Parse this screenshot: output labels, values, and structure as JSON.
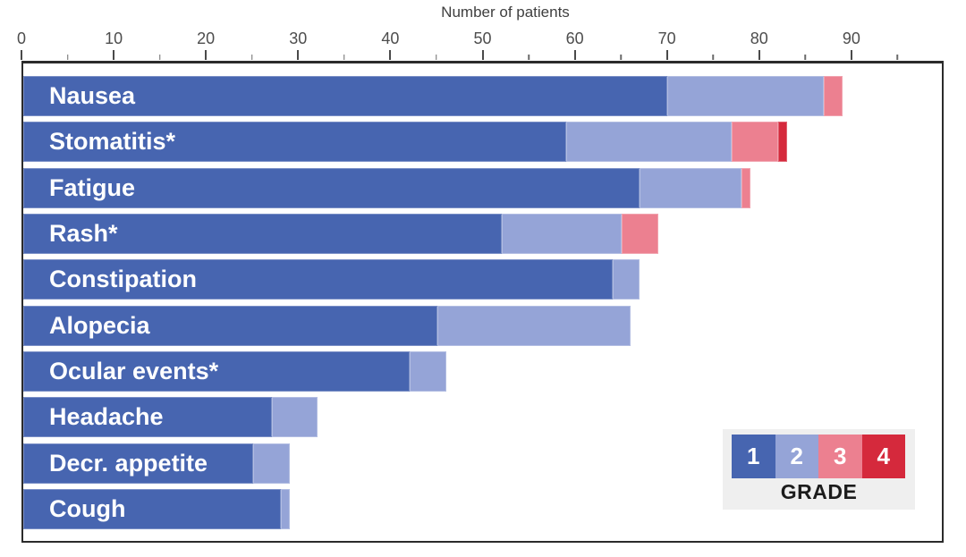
{
  "axis": {
    "title": "Number of patients",
    "major_ticks": [
      0,
      10,
      20,
      30,
      40,
      50,
      60,
      70,
      80,
      90
    ],
    "minor_ticks": [
      5,
      15,
      25,
      35,
      45,
      55,
      65,
      75,
      85,
      95
    ]
  },
  "legend": {
    "title": "GRADE",
    "grades": [
      "1",
      "2",
      "3",
      "4"
    ],
    "background": "#efefef"
  },
  "colors": {
    "grade1": "#4765B0",
    "grade2": "#95A4D7",
    "grade3": "#EC8090",
    "grade4": "#D5293C",
    "plot_border": "#2b2b2b",
    "axis_text": "#4d4d4d"
  },
  "chart_data": {
    "type": "bar",
    "orientation": "horizontal",
    "stacked": true,
    "title": "",
    "xlabel": "Number of patients",
    "ylabel": "",
    "xlim": [
      0,
      100
    ],
    "grid": false,
    "legend_position": "inside bottom-right",
    "categories": [
      "Nausea",
      "Stomatitis*",
      "Fatigue",
      "Rash*",
      "Constipation",
      "Alopecia",
      "Ocular events*",
      "Headache",
      "Decr. appetite",
      "Cough"
    ],
    "series": [
      {
        "name": "Grade 1",
        "color": "#4765B0",
        "values": [
          70,
          59,
          67,
          52,
          64,
          45,
          42,
          27,
          25,
          28
        ]
      },
      {
        "name": "Grade 2",
        "color": "#95A4D7",
        "values": [
          17,
          18,
          11,
          13,
          3,
          21,
          4,
          5,
          4,
          1
        ]
      },
      {
        "name": "Grade 3",
        "color": "#EC8090",
        "values": [
          2,
          5,
          1,
          4,
          0,
          0,
          0,
          0,
          0,
          0
        ]
      },
      {
        "name": "Grade 4",
        "color": "#D5293C",
        "values": [
          0,
          1,
          0,
          0,
          0,
          0,
          0,
          0,
          0,
          0
        ]
      }
    ],
    "totals": [
      89,
      83,
      79,
      69,
      67,
      66,
      46,
      32,
      29,
      29
    ]
  }
}
